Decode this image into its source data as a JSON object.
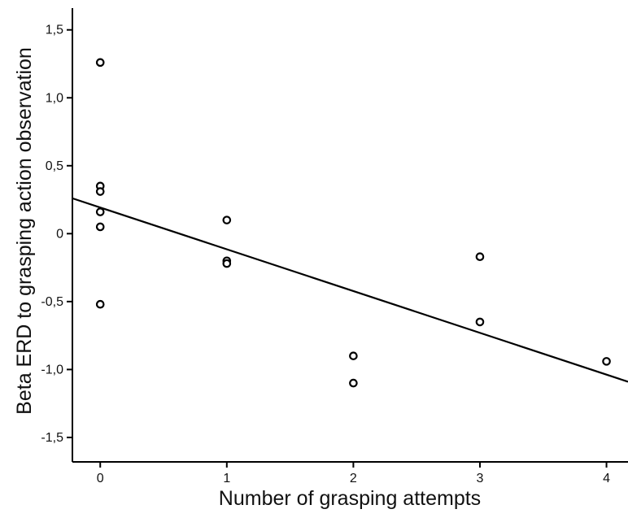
{
  "chart_data": {
    "type": "scatter",
    "title": "",
    "xlabel": "Number of grasping attempts",
    "ylabel": "Beta ERD to grasping action observation",
    "xlim": [
      -0.22,
      4.17
    ],
    "ylim": [
      -1.68,
      1.66
    ],
    "x_ticks": [
      0,
      1,
      2,
      3,
      4
    ],
    "x_tick_labels": [
      "0",
      "1",
      "2",
      "3",
      "4"
    ],
    "y_ticks": [
      1.5,
      1.0,
      0.5,
      0,
      -0.5,
      -1.0,
      -1.5
    ],
    "y_tick_labels": [
      "1,5",
      "1,0",
      "0,5",
      "0",
      "-0,5",
      "-1,0",
      "-1,5"
    ],
    "grid": false,
    "points": [
      {
        "x": 0,
        "y": 1.26
      },
      {
        "x": 0,
        "y": 0.35
      },
      {
        "x": 0,
        "y": 0.31
      },
      {
        "x": 0,
        "y": 0.16
      },
      {
        "x": 0,
        "y": 0.05
      },
      {
        "x": 0,
        "y": -0.52
      },
      {
        "x": 1,
        "y": 0.1
      },
      {
        "x": 1,
        "y": -0.2
      },
      {
        "x": 1,
        "y": -0.22
      },
      {
        "x": 2,
        "y": -0.9
      },
      {
        "x": 2,
        "y": -1.1
      },
      {
        "x": 3,
        "y": -0.17
      },
      {
        "x": 3,
        "y": -0.65
      },
      {
        "x": 4,
        "y": -0.94
      }
    ],
    "fit_line": {
      "x": [
        -0.22,
        4.17
      ],
      "y": [
        0.26,
        -1.09
      ]
    },
    "colors": {
      "points": "#000000",
      "line": "#000000",
      "axes": "#000000"
    }
  }
}
